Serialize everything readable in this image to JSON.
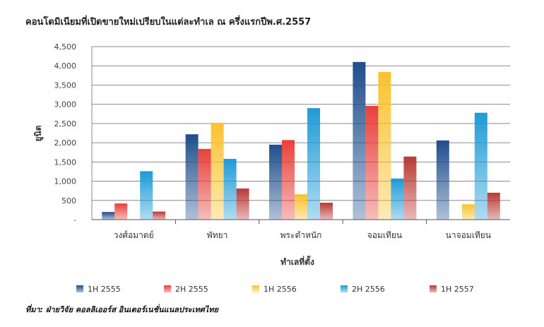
{
  "chart_data": {
    "type": "bar",
    "title": "คอนโดมิเนียมที่เปิดขายใหม่เปรียบในแต่ละทำเล ณ ครึ่งแรกปีพ.ศ.2557",
    "xlabel": "ทำเลที่ตั้ง",
    "ylabel": "ยูนิต",
    "ylim": [
      0,
      4500
    ],
    "yticks": [
      "-",
      "500",
      "1,000",
      "1,500",
      "2,000",
      "2,500",
      "3,000",
      "3,500",
      "4,000",
      "4,500"
    ],
    "grid": true,
    "legend": "bottom",
    "categories": [
      "วงศ์อมาตย์",
      "พัทยา",
      "พระตำหนัก",
      "จอมเทียน",
      "นาจอมเทียน"
    ],
    "series": [
      {
        "name": "1H 2555",
        "color": "#1f4e8c",
        "values": [
          200,
          2220,
          1950,
          4100,
          2060
        ]
      },
      {
        "name": "2H 2555",
        "color": "#e8403a",
        "values": [
          420,
          1840,
          2070,
          2960,
          0
        ]
      },
      {
        "name": "1H 2556",
        "color": "#f9c22e",
        "values": [
          0,
          2520,
          660,
          3840,
          400
        ]
      },
      {
        "name": "2H 2556",
        "color": "#1e9bd7",
        "values": [
          1260,
          1580,
          2900,
          1070,
          2780
        ]
      },
      {
        "name": "1H 2557",
        "color": "#b83a36",
        "values": [
          210,
          810,
          440,
          1640,
          700
        ]
      }
    ]
  },
  "source_note": "ที่มา: ฝ่ายวิจัย คอลลิเออร์ส อินเตอร์เนชั่นแนลประเทศไทย"
}
